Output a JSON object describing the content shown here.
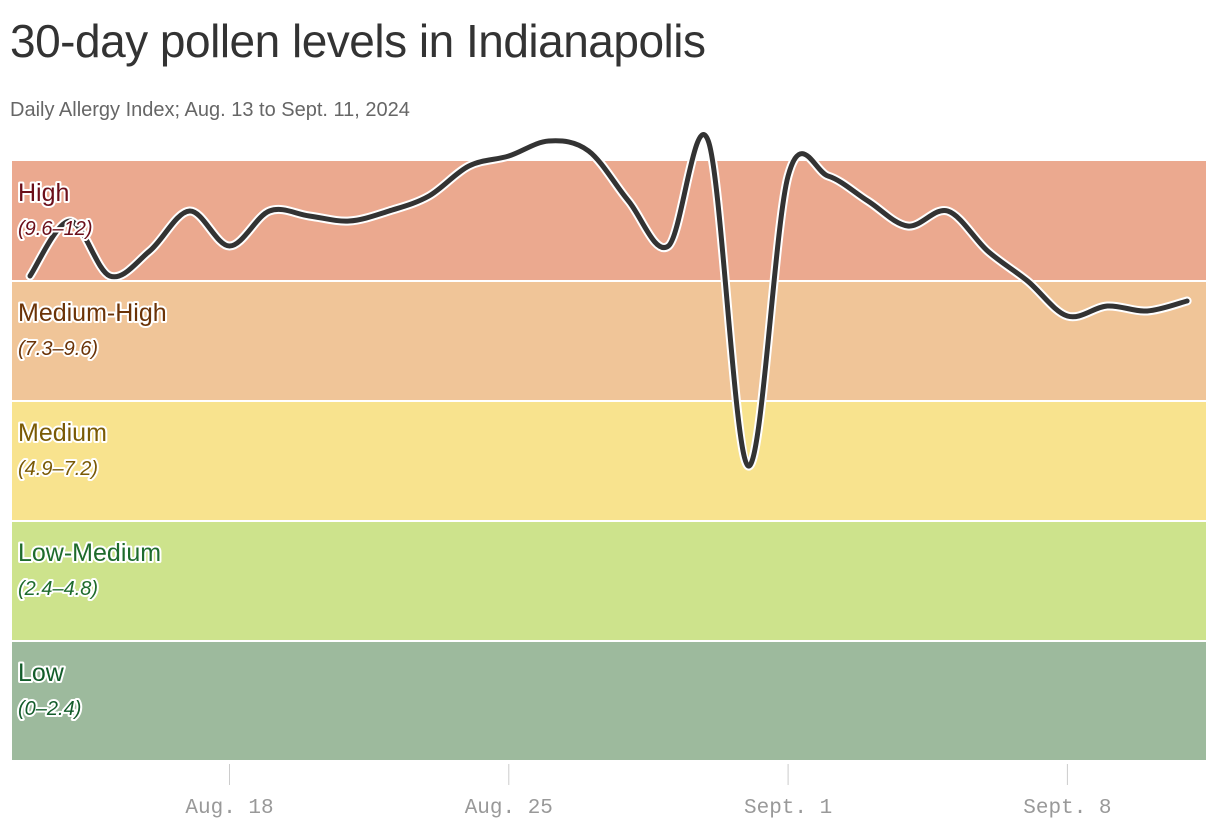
{
  "chart_data": {
    "type": "line",
    "title": "30-day pollen levels in Indianapolis",
    "subtitle": "Daily Allergy Index; Aug. 13 to Sept. 11, 2024",
    "xlabel": "",
    "ylabel": "",
    "ylim": [
      0,
      12
    ],
    "x_tick_labels": [
      "Aug. 18",
      "Aug. 25",
      "Sept. 1",
      "Sept. 8"
    ],
    "x_tick_days": [
      5,
      12,
      19,
      26
    ],
    "bands": [
      {
        "label": "High",
        "range_label": "(9.6–12)",
        "from": 9.6,
        "to": 12,
        "fill": "#eba98f",
        "text": "#6b0f1a"
      },
      {
        "label": "Medium-High",
        "range_label": "(7.3–9.6)",
        "from": 7.2,
        "to": 9.6,
        "fill": "#f0c598",
        "text": "#6b3307"
      },
      {
        "label": "Medium",
        "range_label": "(4.9–7.2)",
        "from": 4.8,
        "to": 7.2,
        "fill": "#f8e38e",
        "text": "#7a5a05"
      },
      {
        "label": "Low-Medium",
        "range_label": "(2.4–4.8)",
        "from": 2.4,
        "to": 4.8,
        "fill": "#cde38c",
        "text": "#1e6b2c"
      },
      {
        "label": "Low",
        "range_label": "(0–2.4)",
        "from": 0,
        "to": 2.4,
        "fill": "#9dba9d",
        "text": "#135c2a"
      }
    ],
    "series": [
      {
        "x": [
          "2024-08-13",
          "2024-08-14",
          "2024-08-15",
          "2024-08-16",
          "2024-08-17",
          "2024-08-18",
          "2024-08-19",
          "2024-08-20",
          "2024-08-21",
          "2024-08-22",
          "2024-08-23",
          "2024-08-24",
          "2024-08-25",
          "2024-08-26",
          "2024-08-27",
          "2024-08-28",
          "2024-08-29",
          "2024-08-30",
          "2024-08-31",
          "2024-09-01",
          "2024-09-02",
          "2024-09-03",
          "2024-09-04",
          "2024-09-05",
          "2024-09-06",
          "2024-09-07",
          "2024-09-08",
          "2024-09-09",
          "2024-09-10",
          "2024-09-11"
        ],
        "values": [
          9.7,
          10.8,
          9.7,
          10.2,
          11.0,
          10.3,
          11.0,
          10.9,
          10.8,
          11.0,
          11.3,
          11.9,
          12.1,
          12.4,
          12.2,
          11.2,
          10.3,
          12.4,
          5.9,
          11.7,
          11.7,
          11.2,
          10.7,
          11.0,
          10.2,
          9.6,
          8.9,
          9.1,
          9.0,
          9.2
        ],
        "color": "#333333"
      }
    ]
  }
}
